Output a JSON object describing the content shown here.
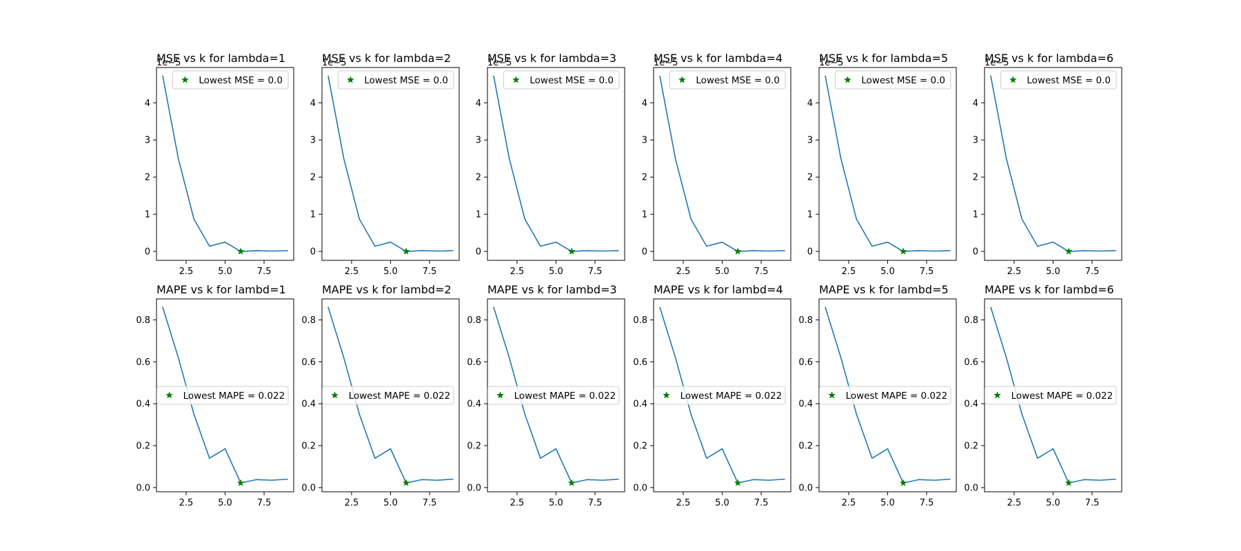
{
  "colors": {
    "line": "#1f77b4",
    "marker": "#008000",
    "axis": "#000000",
    "background": "#ffffff"
  },
  "chart_data": [
    {
      "type": "line",
      "title": "MSE vs k for lambda=1",
      "offset_text": "1e−5",
      "x": [
        1,
        2,
        3,
        4,
        5,
        6,
        7,
        8,
        9
      ],
      "y": [
        4.72,
        2.5,
        0.87,
        0.14,
        0.25,
        0.0,
        0.02,
        0.01,
        0.02
      ],
      "xlim": [
        0.6,
        9.4
      ],
      "ylim": [
        -0.24,
        4.95
      ],
      "xticks": [
        2.5,
        5.0,
        7.5
      ],
      "xtick_labels": [
        "2.5",
        "5.0",
        "7.5"
      ],
      "yticks": [
        0,
        1,
        2,
        3,
        4
      ],
      "ytick_labels": [
        "0",
        "1",
        "2",
        "3",
        "4"
      ],
      "highlight": {
        "x": 6,
        "y": 0.0
      },
      "legend": {
        "label": "Lowest MSE = 0.0",
        "position": "upper right"
      }
    },
    {
      "type": "line",
      "title": "MSE vs k for lambda=2",
      "offset_text": "1e−5",
      "x": [
        1,
        2,
        3,
        4,
        5,
        6,
        7,
        8,
        9
      ],
      "y": [
        4.72,
        2.5,
        0.87,
        0.14,
        0.25,
        0.0,
        0.02,
        0.01,
        0.02
      ],
      "xlim": [
        0.6,
        9.4
      ],
      "ylim": [
        -0.24,
        4.95
      ],
      "xticks": [
        2.5,
        5.0,
        7.5
      ],
      "xtick_labels": [
        "2.5",
        "5.0",
        "7.5"
      ],
      "yticks": [
        0,
        1,
        2,
        3,
        4
      ],
      "ytick_labels": [
        "0",
        "1",
        "2",
        "3",
        "4"
      ],
      "highlight": {
        "x": 6,
        "y": 0.0
      },
      "legend": {
        "label": "Lowest MSE = 0.0",
        "position": "upper right"
      }
    },
    {
      "type": "line",
      "title": "MSE vs k for lambda=3",
      "offset_text": "1e−5",
      "x": [
        1,
        2,
        3,
        4,
        5,
        6,
        7,
        8,
        9
      ],
      "y": [
        4.72,
        2.5,
        0.87,
        0.14,
        0.25,
        0.0,
        0.02,
        0.01,
        0.02
      ],
      "xlim": [
        0.6,
        9.4
      ],
      "ylim": [
        -0.24,
        4.95
      ],
      "xticks": [
        2.5,
        5.0,
        7.5
      ],
      "xtick_labels": [
        "2.5",
        "5.0",
        "7.5"
      ],
      "yticks": [
        0,
        1,
        2,
        3,
        4
      ],
      "ytick_labels": [
        "0",
        "1",
        "2",
        "3",
        "4"
      ],
      "highlight": {
        "x": 6,
        "y": 0.0
      },
      "legend": {
        "label": "Lowest MSE = 0.0",
        "position": "upper right"
      }
    },
    {
      "type": "line",
      "title": "MSE vs k for lambda=4",
      "offset_text": "1e−5",
      "x": [
        1,
        2,
        3,
        4,
        5,
        6,
        7,
        8,
        9
      ],
      "y": [
        4.72,
        2.5,
        0.87,
        0.14,
        0.25,
        0.0,
        0.02,
        0.01,
        0.02
      ],
      "xlim": [
        0.6,
        9.4
      ],
      "ylim": [
        -0.24,
        4.95
      ],
      "xticks": [
        2.5,
        5.0,
        7.5
      ],
      "xtick_labels": [
        "2.5",
        "5.0",
        "7.5"
      ],
      "yticks": [
        0,
        1,
        2,
        3,
        4
      ],
      "ytick_labels": [
        "0",
        "1",
        "2",
        "3",
        "4"
      ],
      "highlight": {
        "x": 6,
        "y": 0.0
      },
      "legend": {
        "label": "Lowest MSE = 0.0",
        "position": "upper right"
      }
    },
    {
      "type": "line",
      "title": "MSE vs k for lambda=5",
      "offset_text": "1e−5",
      "x": [
        1,
        2,
        3,
        4,
        5,
        6,
        7,
        8,
        9
      ],
      "y": [
        4.72,
        2.5,
        0.87,
        0.14,
        0.25,
        0.0,
        0.02,
        0.01,
        0.02
      ],
      "xlim": [
        0.6,
        9.4
      ],
      "ylim": [
        -0.24,
        4.95
      ],
      "xticks": [
        2.5,
        5.0,
        7.5
      ],
      "xtick_labels": [
        "2.5",
        "5.0",
        "7.5"
      ],
      "yticks": [
        0,
        1,
        2,
        3,
        4
      ],
      "ytick_labels": [
        "0",
        "1",
        "2",
        "3",
        "4"
      ],
      "highlight": {
        "x": 6,
        "y": 0.0
      },
      "legend": {
        "label": "Lowest MSE = 0.0",
        "position": "upper right"
      }
    },
    {
      "type": "line",
      "title": "MSE vs k for lambda=6",
      "offset_text": "1e−5",
      "x": [
        1,
        2,
        3,
        4,
        5,
        6,
        7,
        8,
        9
      ],
      "y": [
        4.72,
        2.5,
        0.87,
        0.14,
        0.25,
        0.0,
        0.02,
        0.01,
        0.02
      ],
      "xlim": [
        0.6,
        9.4
      ],
      "ylim": [
        -0.24,
        4.95
      ],
      "xticks": [
        2.5,
        5.0,
        7.5
      ],
      "xtick_labels": [
        "2.5",
        "5.0",
        "7.5"
      ],
      "yticks": [
        0,
        1,
        2,
        3,
        4
      ],
      "ytick_labels": [
        "0",
        "1",
        "2",
        "3",
        "4"
      ],
      "highlight": {
        "x": 6,
        "y": 0.0
      },
      "legend": {
        "label": "Lowest MSE = 0.0",
        "position": "upper right"
      }
    },
    {
      "type": "line",
      "title": "MAPE vs k for lambd=1",
      "offset_text": "",
      "x": [
        1,
        2,
        3,
        4,
        5,
        6,
        7,
        8,
        9
      ],
      "y": [
        0.86,
        0.62,
        0.35,
        0.14,
        0.185,
        0.022,
        0.038,
        0.035,
        0.04
      ],
      "xlim": [
        0.6,
        9.4
      ],
      "ylim": [
        -0.02,
        0.9
      ],
      "xticks": [
        2.5,
        5.0,
        7.5
      ],
      "xtick_labels": [
        "2.5",
        "5.0",
        "7.5"
      ],
      "yticks": [
        0.0,
        0.2,
        0.4,
        0.6,
        0.8
      ],
      "ytick_labels": [
        "0.0",
        "0.2",
        "0.4",
        "0.6",
        "0.8"
      ],
      "highlight": {
        "x": 6,
        "y": 0.022
      },
      "legend": {
        "label": "Lowest MAPE = 0.022",
        "position": "center right"
      }
    },
    {
      "type": "line",
      "title": "MAPE vs k for lambd=2",
      "offset_text": "",
      "x": [
        1,
        2,
        3,
        4,
        5,
        6,
        7,
        8,
        9
      ],
      "y": [
        0.86,
        0.62,
        0.35,
        0.14,
        0.185,
        0.022,
        0.038,
        0.035,
        0.04
      ],
      "xlim": [
        0.6,
        9.4
      ],
      "ylim": [
        -0.02,
        0.9
      ],
      "xticks": [
        2.5,
        5.0,
        7.5
      ],
      "xtick_labels": [
        "2.5",
        "5.0",
        "7.5"
      ],
      "yticks": [
        0.0,
        0.2,
        0.4,
        0.6,
        0.8
      ],
      "ytick_labels": [
        "0.0",
        "0.2",
        "0.4",
        "0.6",
        "0.8"
      ],
      "highlight": {
        "x": 6,
        "y": 0.022
      },
      "legend": {
        "label": "Lowest MAPE = 0.022",
        "position": "center right"
      }
    },
    {
      "type": "line",
      "title": "MAPE vs k for lambd=3",
      "offset_text": "",
      "x": [
        1,
        2,
        3,
        4,
        5,
        6,
        7,
        8,
        9
      ],
      "y": [
        0.86,
        0.62,
        0.35,
        0.14,
        0.185,
        0.022,
        0.038,
        0.035,
        0.04
      ],
      "xlim": [
        0.6,
        9.4
      ],
      "ylim": [
        -0.02,
        0.9
      ],
      "xticks": [
        2.5,
        5.0,
        7.5
      ],
      "xtick_labels": [
        "2.5",
        "5.0",
        "7.5"
      ],
      "yticks": [
        0.0,
        0.2,
        0.4,
        0.6,
        0.8
      ],
      "ytick_labels": [
        "0.0",
        "0.2",
        "0.4",
        "0.6",
        "0.8"
      ],
      "highlight": {
        "x": 6,
        "y": 0.022
      },
      "legend": {
        "label": "Lowest MAPE = 0.022",
        "position": "center right"
      }
    },
    {
      "type": "line",
      "title": "MAPE vs k for lambd=4",
      "offset_text": "",
      "x": [
        1,
        2,
        3,
        4,
        5,
        6,
        7,
        8,
        9
      ],
      "y": [
        0.86,
        0.62,
        0.35,
        0.14,
        0.185,
        0.022,
        0.038,
        0.035,
        0.04
      ],
      "xlim": [
        0.6,
        9.4
      ],
      "ylim": [
        -0.02,
        0.9
      ],
      "xticks": [
        2.5,
        5.0,
        7.5
      ],
      "xtick_labels": [
        "2.5",
        "5.0",
        "7.5"
      ],
      "yticks": [
        0.0,
        0.2,
        0.4,
        0.6,
        0.8
      ],
      "ytick_labels": [
        "0.0",
        "0.2",
        "0.4",
        "0.6",
        "0.8"
      ],
      "highlight": {
        "x": 6,
        "y": 0.022
      },
      "legend": {
        "label": "Lowest MAPE = 0.022",
        "position": "center right"
      }
    },
    {
      "type": "line",
      "title": "MAPE vs k for lambd=5",
      "offset_text": "",
      "x": [
        1,
        2,
        3,
        4,
        5,
        6,
        7,
        8,
        9
      ],
      "y": [
        0.86,
        0.62,
        0.35,
        0.14,
        0.185,
        0.022,
        0.038,
        0.035,
        0.04
      ],
      "xlim": [
        0.6,
        9.4
      ],
      "ylim": [
        -0.02,
        0.9
      ],
      "xticks": [
        2.5,
        5.0,
        7.5
      ],
      "xtick_labels": [
        "2.5",
        "5.0",
        "7.5"
      ],
      "yticks": [
        0.0,
        0.2,
        0.4,
        0.6,
        0.8
      ],
      "ytick_labels": [
        "0.0",
        "0.2",
        "0.4",
        "0.6",
        "0.8"
      ],
      "highlight": {
        "x": 6,
        "y": 0.022
      },
      "legend": {
        "label": "Lowest MAPE = 0.022",
        "position": "center right"
      }
    },
    {
      "type": "line",
      "title": "MAPE vs k for lambd=6",
      "offset_text": "",
      "x": [
        1,
        2,
        3,
        4,
        5,
        6,
        7,
        8,
        9
      ],
      "y": [
        0.86,
        0.62,
        0.35,
        0.14,
        0.185,
        0.022,
        0.038,
        0.035,
        0.04
      ],
      "xlim": [
        0.6,
        9.4
      ],
      "ylim": [
        -0.02,
        0.9
      ],
      "xticks": [
        2.5,
        5.0,
        7.5
      ],
      "xtick_labels": [
        "2.5",
        "5.0",
        "7.5"
      ],
      "yticks": [
        0.0,
        0.2,
        0.4,
        0.6,
        0.8
      ],
      "ytick_labels": [
        "0.0",
        "0.2",
        "0.4",
        "0.6",
        "0.8"
      ],
      "highlight": {
        "x": 6,
        "y": 0.022
      },
      "legend": {
        "label": "Lowest MAPE = 0.022",
        "position": "center right"
      }
    }
  ]
}
